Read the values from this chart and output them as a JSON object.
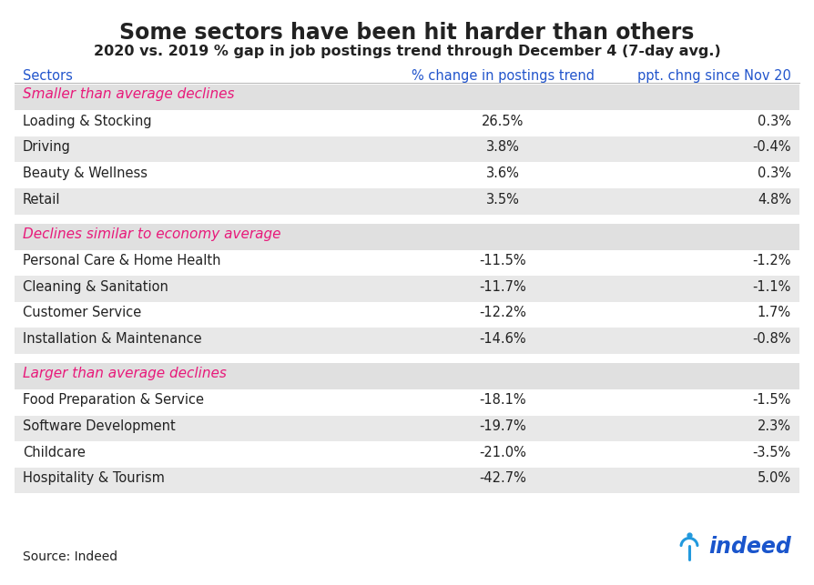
{
  "title": "Some sectors have been hit harder than others",
  "subtitle": "2020 vs. 2019 % gap in job postings trend through December 4 (7-day avg.)",
  "col_headers": [
    "Sectors",
    "% change in postings trend",
    "ppt. chng since Nov 20"
  ],
  "col_header_color": "#2255cc",
  "sections": [
    {
      "label": "Smaller than average declines",
      "label_color": "#e8197a",
      "rows": [
        {
          "sector": "Loading & Stocking",
          "pct_change": "26.5%",
          "ppt_change": "0.3%"
        },
        {
          "sector": "Driving",
          "pct_change": "3.8%",
          "ppt_change": "-0.4%"
        },
        {
          "sector": "Beauty & Wellness",
          "pct_change": "3.6%",
          "ppt_change": "0.3%"
        },
        {
          "sector": "Retail",
          "pct_change": "3.5%",
          "ppt_change": "4.8%"
        }
      ]
    },
    {
      "label": "Declines similar to economy average",
      "label_color": "#e8197a",
      "rows": [
        {
          "sector": "Personal Care & Home Health",
          "pct_change": "-11.5%",
          "ppt_change": "-1.2%"
        },
        {
          "sector": "Cleaning & Sanitation",
          "pct_change": "-11.7%",
          "ppt_change": "-1.1%"
        },
        {
          "sector": "Customer Service",
          "pct_change": "-12.2%",
          "ppt_change": "1.7%"
        },
        {
          "sector": "Installation & Maintenance",
          "pct_change": "-14.6%",
          "ppt_change": "-0.8%"
        }
      ]
    },
    {
      "label": "Larger than average declines",
      "label_color": "#e8197a",
      "rows": [
        {
          "sector": "Food Preparation & Service",
          "pct_change": "-18.1%",
          "ppt_change": "-1.5%"
        },
        {
          "sector": "Software Development",
          "pct_change": "-19.7%",
          "ppt_change": "2.3%"
        },
        {
          "sector": "Childcare",
          "pct_change": "-21.0%",
          "ppt_change": "-3.5%"
        },
        {
          "sector": "Hospitality & Tourism",
          "pct_change": "-42.7%",
          "ppt_change": "5.0%"
        }
      ]
    }
  ],
  "source_text": "Source: Indeed",
  "bg_color": "#ffffff",
  "row_colors": [
    "#ffffff",
    "#e8e8e8"
  ],
  "section_bg_color": "#e0e0e0",
  "title_fontsize": 17,
  "subtitle_fontsize": 11.5,
  "cell_fontsize": 10.5,
  "header_fontsize": 10.5,
  "section_fontsize": 11,
  "source_fontsize": 10,
  "text_color": "#222222",
  "indeed_blue": "#1a55cc",
  "indeed_cyan": "#2299dd"
}
